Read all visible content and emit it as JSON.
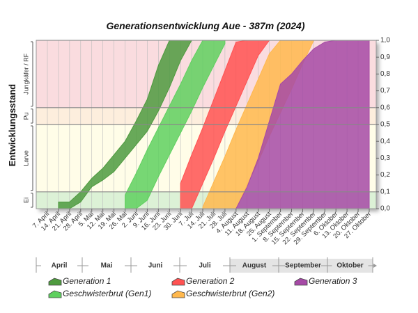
{
  "chart_data": {
    "type": "band-area",
    "title": "Generationsentwicklung Aue - 387m (2024)",
    "y_label": "Entwicklungsstand",
    "categories": [
      "7. April",
      "14. April",
      "21. April",
      "28. April",
      "5. Mai",
      "12. Mai",
      "19. Mai",
      "26. Mai",
      "2. Juni",
      "9. Juni",
      "16. Juni",
      "23. Juni",
      "30. Juni",
      "7. Juli",
      "14. Juli",
      "21. Juli",
      "28. Juli",
      "4. August",
      "11. August",
      "18. August",
      "25. August",
      "1. September",
      "8. September",
      "15. September",
      "22. September",
      "29. September",
      "6. Oktober",
      "13. Oktober",
      "20. Oktober",
      "27. Oktober"
    ],
    "months": [
      "April",
      "Mai",
      "Juni",
      "Juli",
      "August",
      "September",
      "Oktober"
    ],
    "stages": [
      {
        "label": "Ei",
        "from": 0,
        "to": 0.1,
        "color": "#dcf1d6"
      },
      {
        "label": "Larve",
        "from": 0.1,
        "to": 0.5,
        "color": "#fffde8"
      },
      {
        "label": "Pu",
        "from": 0.5,
        "to": 0.6,
        "color": "#fdeedd"
      },
      {
        "label": "Jungkäfer / RF",
        "from": 0.6,
        "to": 1.0,
        "color": "#fadcdf"
      }
    ],
    "ylim": [
      0,
      1
    ],
    "yticks": [
      {
        "value": 0,
        "label": "0,0"
      },
      {
        "value": 0.1,
        "label": "0,1"
      },
      {
        "value": 0.2,
        "label": "0,2"
      },
      {
        "value": 0.3,
        "label": "0,3"
      },
      {
        "value": 0.4,
        "label": "0,4"
      },
      {
        "value": 0.5,
        "label": "0,5"
      },
      {
        "value": 0.6,
        "label": "0,6"
      },
      {
        "value": 0.7,
        "label": "0,7"
      },
      {
        "value": 0.8,
        "label": "0,8"
      },
      {
        "value": 0.9,
        "label": "0,9"
      },
      {
        "value": 1.0,
        "label": "1,0"
      }
    ],
    "series": [
      {
        "name": "Generation 1",
        "color": "#4e9a3f",
        "low": [
          null,
          0,
          0,
          0.04,
          0.13,
          0.17,
          0.22,
          0.3,
          0.38,
          0.46,
          0.58,
          0.72,
          0.88,
          1.0,
          null,
          null,
          null,
          null,
          null,
          null,
          null,
          null,
          null,
          null,
          null,
          null,
          null,
          null,
          null,
          null
        ],
        "high": [
          null,
          0.04,
          0.04,
          0.1,
          0.18,
          0.24,
          0.32,
          0.4,
          0.52,
          0.65,
          0.85,
          1.0,
          1.0,
          1.0,
          null,
          null,
          null,
          null,
          null,
          null,
          null,
          null,
          null,
          null,
          null,
          null,
          null,
          null,
          null,
          null
        ]
      },
      {
        "name": "Geschwisterbrut (Gen1)",
        "color": "#5fd05f",
        "low": [
          null,
          null,
          null,
          null,
          null,
          null,
          null,
          0,
          0,
          0.05,
          0.19,
          0.32,
          0.45,
          0.58,
          0.72,
          0.85,
          0.98,
          null,
          null,
          null,
          null,
          null,
          null,
          null,
          null,
          null,
          null,
          null,
          null,
          null
        ],
        "high": [
          null,
          null,
          null,
          null,
          null,
          null,
          null,
          0.08,
          0.21,
          0.35,
          0.48,
          0.61,
          0.74,
          0.88,
          1.0,
          1.0,
          1.0,
          null,
          null,
          null,
          null,
          null,
          null,
          null,
          null,
          null,
          null,
          null,
          null,
          null
        ]
      },
      {
        "name": "Generation 2",
        "color": "#ff5252",
        "low": [
          null,
          null,
          null,
          null,
          null,
          null,
          null,
          null,
          null,
          null,
          null,
          null,
          0,
          0,
          0.15,
          0.3,
          0.46,
          0.61,
          0.76,
          0.91,
          1.0,
          null,
          null,
          null,
          null,
          null,
          null,
          null,
          null,
          null
        ],
        "high": [
          null,
          null,
          null,
          null,
          null,
          null,
          null,
          null,
          null,
          null,
          null,
          null,
          0.15,
          0.32,
          0.48,
          0.65,
          0.82,
          0.99,
          1.0,
          1.0,
          1.0,
          null,
          null,
          null,
          null,
          null,
          null,
          null,
          null,
          null
        ]
      },
      {
        "name": "Geschwisterbrut (Gen2)",
        "color": "#ffb84d",
        "low": [
          null,
          null,
          null,
          null,
          null,
          null,
          null,
          null,
          null,
          null,
          null,
          null,
          null,
          null,
          0,
          0,
          0,
          0,
          0.14,
          0.28,
          0.43,
          0.57,
          0.71,
          0.86,
          1.0,
          null,
          null,
          null,
          null,
          null
        ],
        "high": [
          null,
          null,
          null,
          null,
          null,
          null,
          null,
          null,
          null,
          null,
          null,
          null,
          null,
          null,
          0.01,
          0.16,
          0.31,
          0.47,
          0.62,
          0.77,
          0.92,
          1.0,
          1.0,
          1.0,
          1.0,
          null,
          null,
          null,
          null,
          null
        ]
      },
      {
        "name": "Generation 3",
        "color": "#a64aa6",
        "low": [
          null,
          null,
          null,
          null,
          null,
          null,
          null,
          null,
          null,
          null,
          null,
          null,
          null,
          null,
          null,
          null,
          null,
          0,
          0,
          0,
          0,
          0,
          0,
          0,
          0,
          0,
          0,
          0,
          0,
          0
        ],
        "high": [
          null,
          null,
          null,
          null,
          null,
          null,
          null,
          null,
          null,
          null,
          null,
          null,
          null,
          null,
          null,
          null,
          null,
          0,
          0.13,
          0.3,
          0.52,
          0.74,
          0.8,
          0.88,
          0.95,
          0.99,
          1.0,
          1.0,
          1.0,
          1.0
        ]
      }
    ]
  }
}
